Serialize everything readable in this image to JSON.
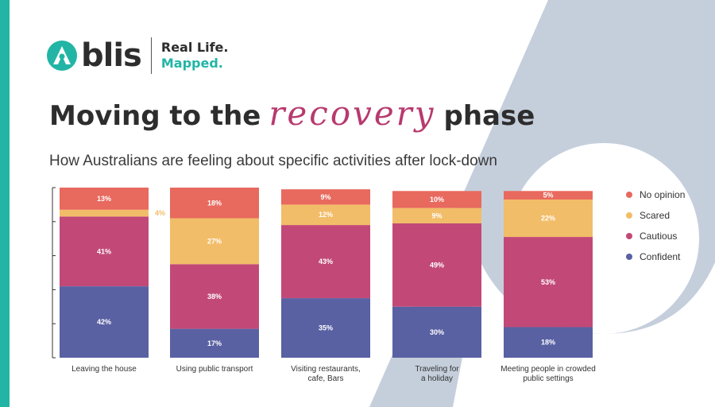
{
  "brand": {
    "name": "blis",
    "tagline_1": "Real Life.",
    "tagline_2": "Mapped."
  },
  "header": {
    "title_before": "Moving to the",
    "title_script": "recovery",
    "title_after": "phase",
    "subtitle": "How Australians are feeling about specific activities after lock-down"
  },
  "colors": {
    "teal": "#22b5a5",
    "no_opinion": "#e8695e",
    "scared": "#f2bd68",
    "cautious": "#c24977",
    "confident": "#5961a3"
  },
  "chart_data": {
    "type": "bar",
    "stacked": true,
    "categories": [
      "Leaving the house",
      "Using public transport",
      "Visiting restaurants, cafe, Bars",
      "Traveling for a holiday",
      "Meeting people in crowded public settings"
    ],
    "category_lines": [
      [
        "Leaving the house"
      ],
      [
        "Using public transport"
      ],
      [
        "Visiting restaurants,",
        "cafe, Bars"
      ],
      [
        "Traveling for",
        "a holiday"
      ],
      [
        "Meeting people in crowded",
        "public settings"
      ]
    ],
    "series": [
      {
        "name": "Confident",
        "color": "#5961a3",
        "values": [
          42,
          17,
          35,
          30,
          18
        ]
      },
      {
        "name": "Cautious",
        "color": "#c24977",
        "values": [
          41,
          38,
          43,
          49,
          53
        ]
      },
      {
        "name": "Scared",
        "color": "#f2bd68",
        "values": [
          4,
          27,
          12,
          9,
          22
        ]
      },
      {
        "name": "No opinion",
        "color": "#e8695e",
        "values": [
          13,
          18,
          9,
          10,
          5
        ]
      }
    ],
    "value_suffix": "%",
    "ylim": [
      0,
      100
    ],
    "legend_position": "right"
  },
  "legend_order": [
    "No opinion",
    "Scared",
    "Cautious",
    "Confident"
  ]
}
